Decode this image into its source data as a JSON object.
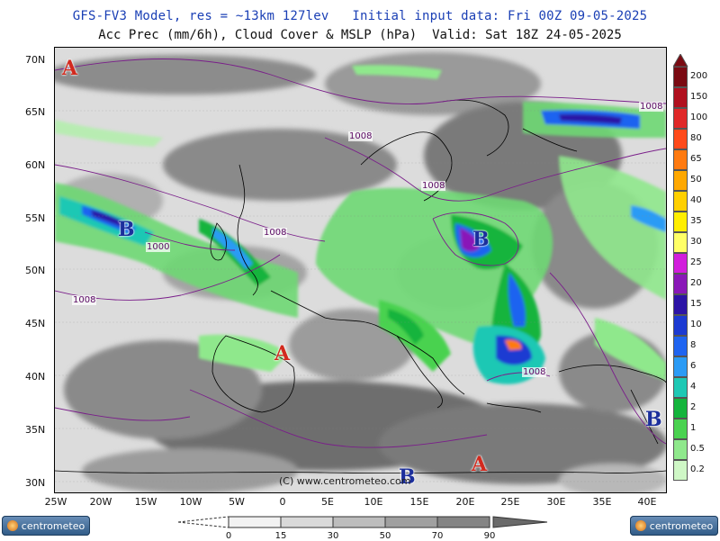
{
  "header": {
    "line1": "GFS-FV3 Model, res = ~13km 127lev   Initial input data: Fri 00Z 09-05-2025",
    "line2": "Acc Prec (mm/6h), Cloud Cover & MSLP (hPa)  Valid: Sat 18Z 24-05-2025"
  },
  "axes": {
    "latitudes": [
      "70N",
      "65N",
      "60N",
      "55N",
      "50N",
      "45N",
      "40N",
      "35N",
      "30N"
    ],
    "longitudes": [
      "25W",
      "20W",
      "15W",
      "10W",
      "5W",
      "0",
      "5E",
      "10E",
      "15E",
      "20E",
      "25E",
      "30E",
      "35E",
      "40E"
    ]
  },
  "precip_legend": {
    "levels": [
      "200",
      "150",
      "100",
      "80",
      "65",
      "50",
      "40",
      "35",
      "30",
      "25",
      "20",
      "15",
      "10",
      "8",
      "6",
      "4",
      "2",
      "1",
      "0.5",
      "0.2"
    ],
    "colors": [
      "#7a0a12",
      "#b0101e",
      "#e02828",
      "#ff4a1a",
      "#ff7a10",
      "#ffa800",
      "#ffd000",
      "#ffee00",
      "#ffff66",
      "#d21edc",
      "#8a18b8",
      "#2c14a6",
      "#1c3ad2",
      "#1f64f0",
      "#2b9bf5",
      "#1ec8b4",
      "#14b43c",
      "#4ad250",
      "#8fe88c",
      "#cff7c6"
    ]
  },
  "cloud_legend": {
    "labels": [
      "0",
      "15",
      "30",
      "50",
      "70",
      "90"
    ],
    "colors": [
      "#f2f2f2",
      "#d9d9d9",
      "#bdbdbd",
      "#a0a0a0",
      "#848484",
      "#6a6a6a"
    ]
  },
  "pressure_centers": [
    {
      "type": "high",
      "label": "A"
    },
    {
      "type": "low",
      "label": "B"
    },
    {
      "type": "low",
      "label": "B"
    },
    {
      "type": "high",
      "label": "A"
    },
    {
      "type": "low",
      "label": "B"
    },
    {
      "type": "high",
      "label": "A"
    },
    {
      "type": "low",
      "label": "B"
    }
  ],
  "isobar_labels": [
    "1008",
    "1008",
    "1008",
    "1000",
    "1008",
    "1008",
    "1008"
  ],
  "copyright": "(C) www.centrometeo.com",
  "logos": {
    "left": "centrometeo",
    "right": "centrometeo"
  }
}
